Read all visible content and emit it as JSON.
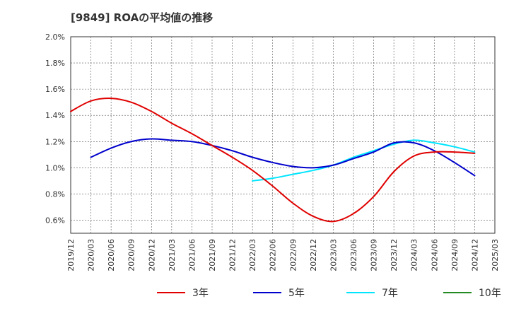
{
  "chart_data": {
    "type": "line",
    "title": "[9849]  ROAの平均値の推移",
    "xlabel": "",
    "ylabel": "",
    "ylim": [
      0.5,
      2.0
    ],
    "yticks": [
      "2.0%",
      "1.8%",
      "1.6%",
      "1.4%",
      "1.2%",
      "1.0%",
      "0.8%",
      "0.6%"
    ],
    "x_tick_labels": [
      "2019/12",
      "2020/03",
      "2020/06",
      "2020/09",
      "2020/12",
      "2021/03",
      "2021/06",
      "2021/09",
      "2021/12",
      "2022/03",
      "2022/06",
      "2022/09",
      "2022/12",
      "2023/03",
      "2023/06",
      "2023/09",
      "2023/12",
      "2024/03",
      "2024/06",
      "2024/09",
      "2024/12",
      "2025/03"
    ],
    "grid": true,
    "legend_position": "bottom",
    "series": [
      {
        "name": "3年",
        "color": "#e00000",
        "x": [
          "2019/12",
          "2020/03",
          "2020/06",
          "2020/09",
          "2020/12",
          "2021/03",
          "2021/06",
          "2021/09",
          "2021/12",
          "2022/03",
          "2022/06",
          "2022/09",
          "2022/12",
          "2023/03",
          "2023/06",
          "2023/09",
          "2023/12",
          "2024/03",
          "2024/06",
          "2024/09",
          "2024/12"
        ],
        "values": [
          1.43,
          1.51,
          1.53,
          1.5,
          1.43,
          1.34,
          1.26,
          1.17,
          1.08,
          0.98,
          0.86,
          0.73,
          0.63,
          0.59,
          0.65,
          0.78,
          0.97,
          1.09,
          1.12,
          1.12,
          1.11
        ]
      },
      {
        "name": "5年",
        "color": "#0000cc",
        "x": [
          "2020/03",
          "2020/06",
          "2020/09",
          "2020/12",
          "2021/03",
          "2021/06",
          "2021/09",
          "2021/12",
          "2022/03",
          "2022/06",
          "2022/09",
          "2022/12",
          "2023/03",
          "2023/06",
          "2023/09",
          "2023/12",
          "2024/03",
          "2024/06",
          "2024/09",
          "2024/12"
        ],
        "values": [
          1.08,
          1.15,
          1.2,
          1.22,
          1.21,
          1.2,
          1.17,
          1.13,
          1.08,
          1.04,
          1.01,
          1.0,
          1.02,
          1.07,
          1.12,
          1.19,
          1.19,
          1.13,
          1.04,
          0.94
        ]
      },
      {
        "name": "7年",
        "color": "#00e5ff",
        "x": [
          "2022/03",
          "2022/06",
          "2022/09",
          "2022/12",
          "2023/03",
          "2023/06",
          "2023/09",
          "2023/12",
          "2024/03",
          "2024/06",
          "2024/09",
          "2024/12"
        ],
        "values": [
          0.9,
          0.92,
          0.95,
          0.98,
          1.02,
          1.08,
          1.13,
          1.18,
          1.21,
          1.19,
          1.16,
          1.12
        ]
      },
      {
        "name": "10年",
        "color": "#228b22",
        "x": [],
        "values": []
      }
    ]
  }
}
